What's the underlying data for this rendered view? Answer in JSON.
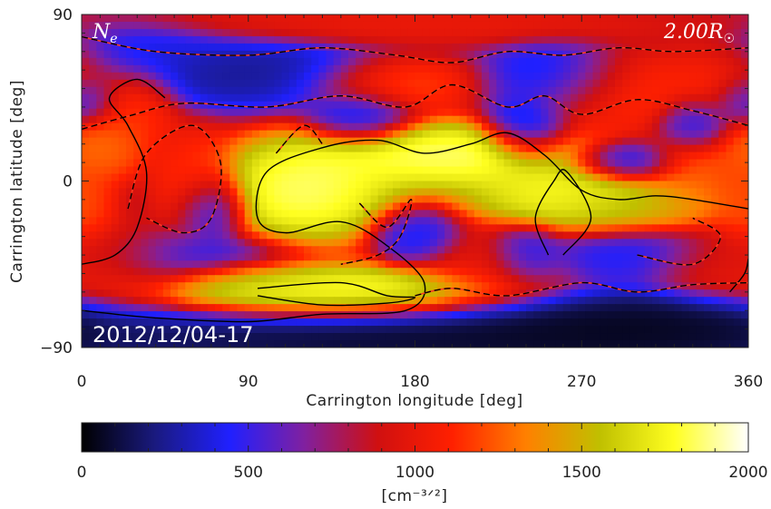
{
  "chart_data": {
    "type": "heatmap",
    "variable_label": "N",
    "variable_subscript": "e",
    "height_label": "2.00R",
    "height_symbol": "☉",
    "date_label": "2012/12/04-17",
    "xlabel": "Carrington longitude [deg]",
    "ylabel": "Carrington latitude [deg]",
    "xlim": [
      0,
      360
    ],
    "ylim": [
      -90,
      90
    ],
    "xticks": [
      "0",
      "90",
      "180",
      "270",
      "360"
    ],
    "xtick_values": [
      0,
      90,
      180,
      270,
      360
    ],
    "yticks": [
      "90",
      "0",
      "−90"
    ],
    "ytick_values": [
      90,
      0,
      -90
    ],
    "colorbar": {
      "range": [
        0,
        2000
      ],
      "ticks": [
        "0",
        "500",
        "1000",
        "1500",
        "2000"
      ],
      "tick_values": [
        0,
        500,
        1000,
        1500,
        2000
      ],
      "unit_label": "[cm⁻³ᐟ²]",
      "colormap_stops": [
        "#000000",
        "#1a1a80",
        "#2020ff",
        "#8020a0",
        "#d01010",
        "#ff2000",
        "#ff8000",
        "#c0c000",
        "#ffff20",
        "#ffffff"
      ]
    },
    "intensity_blobs": [
      {
        "lon": 0,
        "lat": -12,
        "value": 1250,
        "slon": 10,
        "slat": 14
      },
      {
        "lon": 10,
        "lat": 18,
        "value": 1350,
        "slon": 14,
        "slat": 10
      },
      {
        "lon": 30,
        "lat": 40,
        "value": 1200,
        "slon": 12,
        "slat": 12
      },
      {
        "lon": 120,
        "lat": -5,
        "value": 2000,
        "slon": 28,
        "slat": 16
      },
      {
        "lon": 200,
        "lat": 14,
        "value": 2000,
        "slon": 40,
        "slat": 10
      },
      {
        "lon": 262,
        "lat": -8,
        "value": 1900,
        "slon": 30,
        "slat": 10
      },
      {
        "lon": 300,
        "lat": -14,
        "value": 1550,
        "slon": 25,
        "slat": 8
      },
      {
        "lon": 330,
        "lat": 5,
        "value": 1300,
        "slon": 14,
        "slat": 12
      },
      {
        "lon": 140,
        "lat": -60,
        "value": 1950,
        "slon": 50,
        "slat": 8
      },
      {
        "lon": 90,
        "lat": -55,
        "value": 1700,
        "slon": 25,
        "slat": 6
      },
      {
        "lon": 170,
        "lat": 52,
        "value": 1250,
        "slon": 25,
        "slat": 8
      },
      {
        "lon": 285,
        "lat": 48,
        "value": 1200,
        "slon": 30,
        "slat": 12
      },
      {
        "lon": 350,
        "lat": 58,
        "value": 1150,
        "slon": 18,
        "slat": 12
      },
      {
        "lon": 20,
        "lat": -45,
        "value": 1100,
        "slon": 20,
        "slat": 12
      },
      {
        "lon": 60,
        "lat": 0,
        "value": 1150,
        "slon": 12,
        "slat": 16
      },
      {
        "lon": 220,
        "lat": -45,
        "value": 1000,
        "slon": 20,
        "slat": 10
      },
      {
        "lon": 340,
        "lat": -45,
        "value": 1050,
        "slon": 18,
        "slat": 10
      },
      {
        "lon": 180,
        "lat": 85,
        "value": 1050,
        "slon": 80,
        "slat": 6
      },
      {
        "lon": 90,
        "lat": 58,
        "value": 200,
        "slon": 35,
        "slat": 10
      },
      {
        "lon": 255,
        "lat": 55,
        "value": 150,
        "slon": 20,
        "slat": 10
      },
      {
        "lon": 240,
        "lat": 30,
        "value": 150,
        "slon": 12,
        "slat": 10
      },
      {
        "lon": 70,
        "lat": -15,
        "value": 200,
        "slon": 10,
        "slat": 10
      },
      {
        "lon": 30,
        "lat": 70,
        "value": 350,
        "slon": 25,
        "slat": 8
      },
      {
        "lon": 150,
        "lat": 35,
        "value": 300,
        "slon": 15,
        "slat": 8
      },
      {
        "lon": 330,
        "lat": 30,
        "value": 350,
        "slon": 10,
        "slat": 8
      },
      {
        "lon": 295,
        "lat": 10,
        "value": 300,
        "slon": 15,
        "slat": 6
      },
      {
        "lon": 0,
        "lat": 45,
        "value": 350,
        "slon": 10,
        "slat": 8
      },
      {
        "lon": 55,
        "lat": -42,
        "value": 400,
        "slon": 30,
        "slat": 8
      },
      {
        "lon": 180,
        "lat": -30,
        "value": 350,
        "slon": 12,
        "slat": 8
      },
      {
        "lon": 240,
        "lat": -40,
        "value": 300,
        "slon": 10,
        "slat": 8
      },
      {
        "lon": 300,
        "lat": -40,
        "value": 400,
        "slon": 25,
        "slat": 8
      },
      {
        "lon": 200,
        "lat": -85,
        "value": 0,
        "slon": 120,
        "slat": 10
      },
      {
        "lon": 300,
        "lat": -78,
        "value": 0,
        "slon": 50,
        "slat": 10
      }
    ],
    "contours": [
      {
        "style": "solid",
        "points": [
          [
            0,
            -70
          ],
          [
            40,
            -74
          ],
          [
            90,
            -76
          ],
          [
            130,
            -72
          ],
          [
            175,
            -70
          ],
          [
            185,
            -55
          ],
          [
            165,
            -35
          ],
          [
            140,
            -22
          ],
          [
            110,
            -28
          ],
          [
            95,
            -20
          ],
          [
            100,
            5
          ],
          [
            130,
            18
          ],
          [
            160,
            22
          ],
          [
            185,
            15
          ],
          [
            210,
            20
          ],
          [
            230,
            26
          ],
          [
            250,
            14
          ],
          [
            270,
            -5
          ],
          [
            290,
            -10
          ],
          [
            310,
            -8
          ],
          [
            330,
            -10
          ],
          [
            360,
            -15
          ]
        ]
      },
      {
        "style": "solid",
        "points": [
          [
            0,
            -45
          ],
          [
            18,
            -40
          ],
          [
            30,
            -25
          ],
          [
            35,
            5
          ],
          [
            25,
            30
          ],
          [
            15,
            45
          ],
          [
            30,
            55
          ],
          [
            45,
            45
          ]
        ]
      },
      {
        "style": "solid",
        "points": [
          [
            95,
            -58
          ],
          [
            140,
            -55
          ],
          [
            165,
            -62
          ],
          [
            180,
            -63
          ],
          [
            165,
            -66
          ],
          [
            130,
            -67
          ],
          [
            95,
            -62
          ]
        ]
      },
      {
        "style": "solid",
        "points": [
          [
            260,
            -40
          ],
          [
            275,
            -20
          ],
          [
            262,
            5
          ],
          [
            255,
            0
          ],
          [
            245,
            -20
          ],
          [
            252,
            -40
          ]
        ]
      },
      {
        "style": "solid",
        "points": [
          [
            350,
            -60
          ],
          [
            358,
            -50
          ],
          [
            360,
            -42
          ]
        ]
      },
      {
        "style": "dashed",
        "points": [
          [
            0,
            78
          ],
          [
            40,
            70
          ],
          [
            90,
            68
          ],
          [
            130,
            72
          ],
          [
            170,
            68
          ],
          [
            200,
            64
          ],
          [
            230,
            70
          ],
          [
            260,
            68
          ],
          [
            290,
            72
          ],
          [
            320,
            70
          ],
          [
            360,
            72
          ]
        ]
      },
      {
        "style": "dashed",
        "points": [
          [
            0,
            28
          ],
          [
            25,
            35
          ],
          [
            55,
            42
          ],
          [
            100,
            40
          ],
          [
            140,
            46
          ],
          [
            175,
            40
          ],
          [
            200,
            52
          ],
          [
            230,
            40
          ],
          [
            250,
            46
          ],
          [
            270,
            36
          ],
          [
            300,
            44
          ],
          [
            330,
            38
          ],
          [
            360,
            30
          ]
        ]
      },
      {
        "style": "dashed",
        "points": [
          [
            25,
            -15
          ],
          [
            35,
            15
          ],
          [
            60,
            30
          ],
          [
            75,
            10
          ],
          [
            70,
            -20
          ],
          [
            55,
            -28
          ],
          [
            35,
            -20
          ]
        ]
      },
      {
        "style": "dashed",
        "points": [
          [
            150,
            -12
          ],
          [
            165,
            -25
          ],
          [
            178,
            -10
          ],
          [
            172,
            -30
          ],
          [
            160,
            -40
          ],
          [
            140,
            -45
          ]
        ]
      },
      {
        "style": "dashed",
        "points": [
          [
            180,
            -62
          ],
          [
            200,
            -58
          ],
          [
            230,
            -62
          ],
          [
            270,
            -55
          ],
          [
            300,
            -60
          ],
          [
            330,
            -56
          ],
          [
            360,
            -55
          ]
        ]
      },
      {
        "style": "dashed",
        "points": [
          [
            105,
            15
          ],
          [
            120,
            30
          ],
          [
            130,
            20
          ]
        ]
      },
      {
        "style": "dashed",
        "points": [
          [
            300,
            -40
          ],
          [
            330,
            -45
          ],
          [
            345,
            -30
          ],
          [
            330,
            -20
          ]
        ]
      }
    ]
  }
}
